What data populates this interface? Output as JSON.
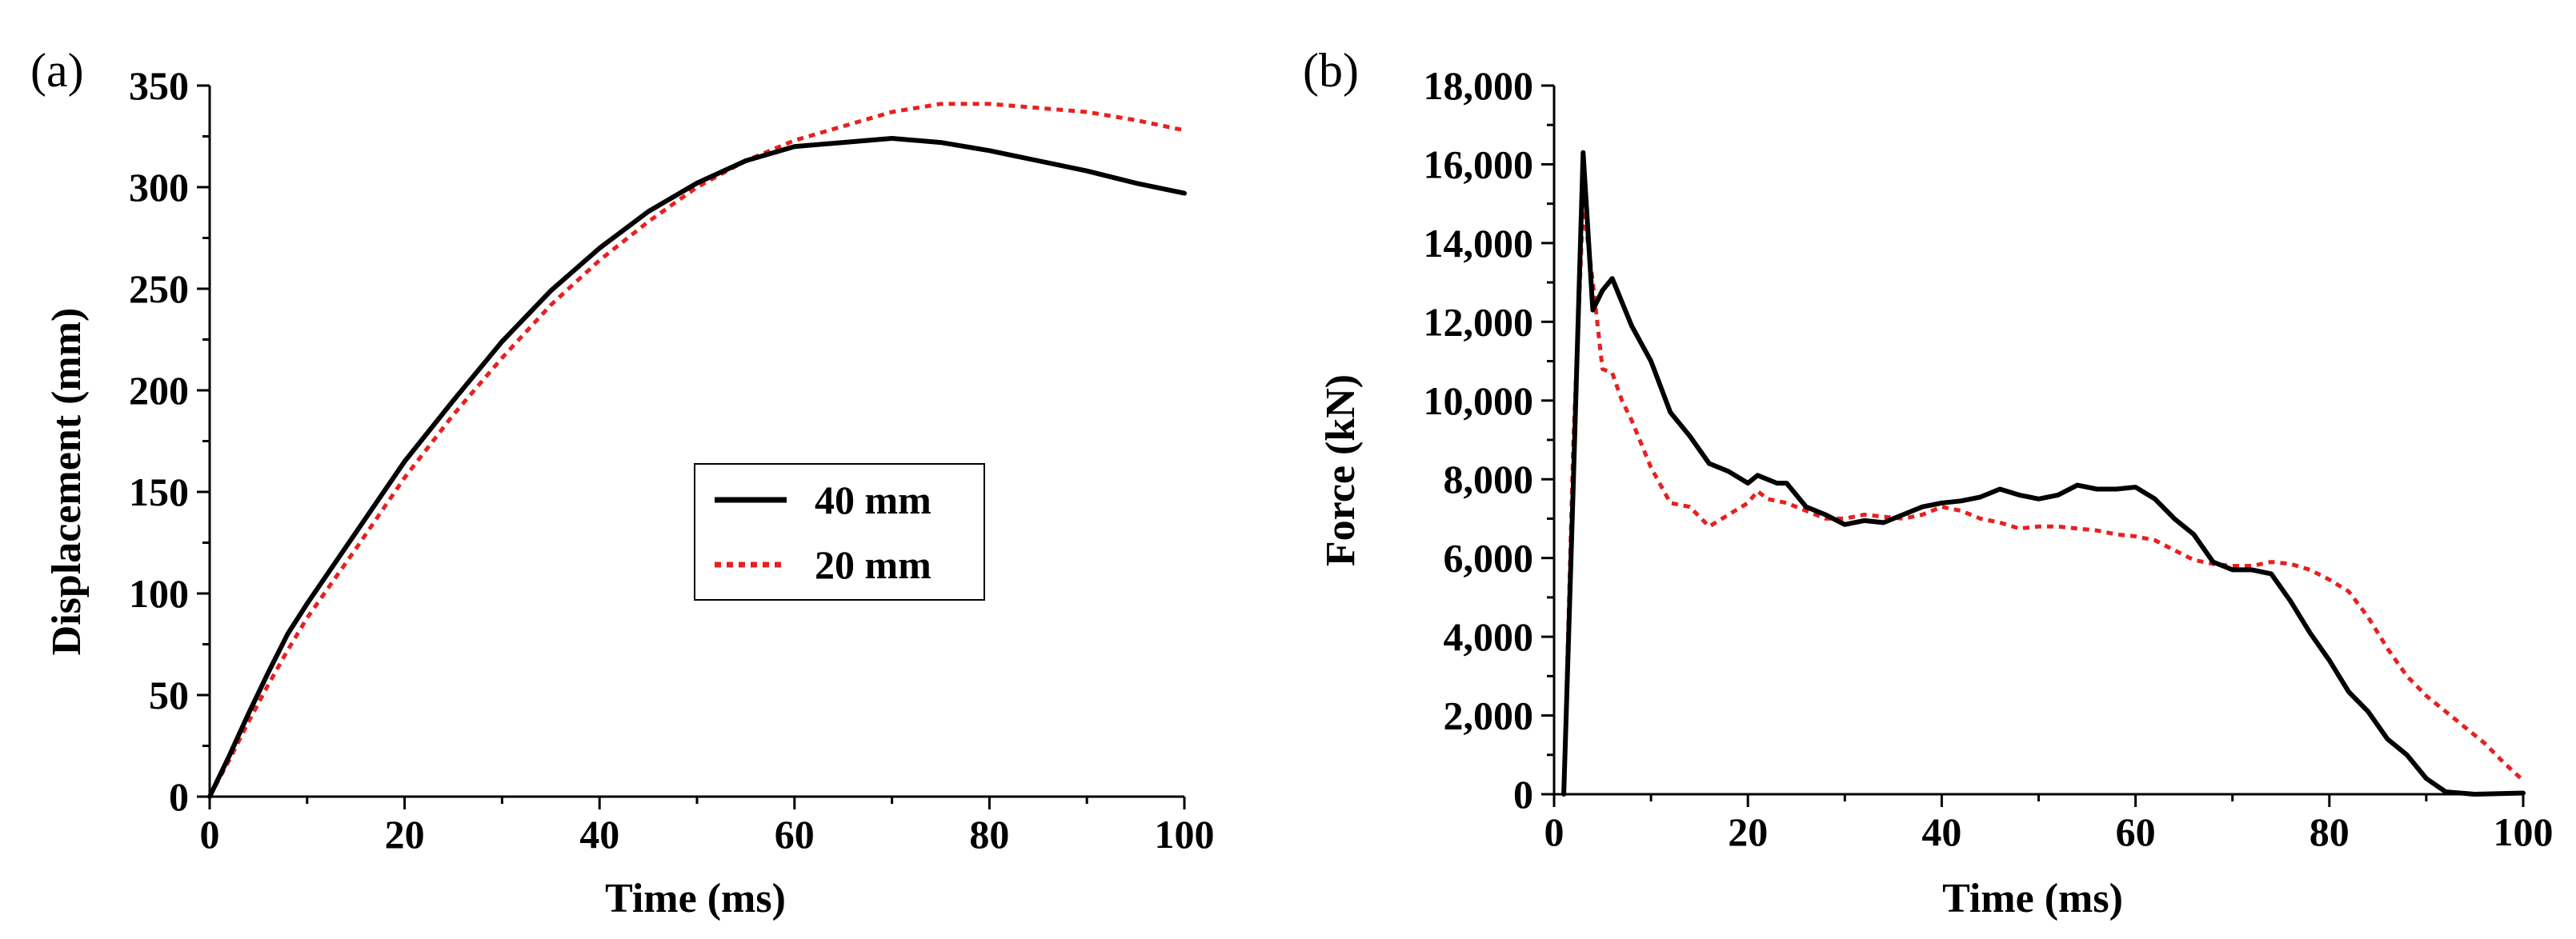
{
  "chart_data": [
    {
      "panel_label": "(a)",
      "type": "line",
      "title": "",
      "xlabel": "Time (ms)",
      "ylabel": "Displacement (mm)",
      "xlim": [
        0,
        100
      ],
      "ylim": [
        0,
        350
      ],
      "xticks": [
        0,
        20,
        40,
        60,
        80,
        100
      ],
      "xtick_labels": [
        "0",
        "20",
        "40",
        "60",
        "80",
        "100"
      ],
      "yticks": [
        0,
        50,
        100,
        150,
        200,
        250,
        300,
        350
      ],
      "ytick_labels": [
        "0",
        "50",
        "100",
        "150",
        "200",
        "250",
        "300",
        "350"
      ],
      "grid": false,
      "legend": {
        "position": "center-right",
        "labels": [
          "40 mm",
          "20 mm"
        ]
      },
      "series": [
        {
          "name": "40 mm",
          "color": "#000000",
          "style": "solid",
          "x": [
            0,
            2,
            4,
            6,
            8,
            10,
            15,
            20,
            25,
            30,
            35,
            40,
            45,
            50,
            55,
            60,
            65,
            70,
            75,
            80,
            85,
            90,
            95,
            100
          ],
          "y": [
            0,
            20,
            41,
            61,
            80,
            95,
            130,
            165,
            195,
            224,
            249,
            270,
            288,
            302,
            313,
            320,
            322,
            324,
            322,
            318,
            313,
            308,
            302,
            297
          ]
        },
        {
          "name": "20 mm",
          "color": "#e82020",
          "style": "dotted",
          "x": [
            0,
            2,
            4,
            6,
            8,
            10,
            15,
            20,
            25,
            30,
            35,
            40,
            45,
            50,
            55,
            60,
            65,
            70,
            75,
            80,
            85,
            90,
            95,
            100
          ],
          "y": [
            0,
            18,
            37,
            55,
            72,
            88,
            122,
            157,
            188,
            216,
            242,
            264,
            283,
            300,
            313,
            323,
            330,
            337,
            341,
            341,
            339,
            337,
            333,
            328
          ]
        }
      ]
    },
    {
      "panel_label": "(b)",
      "type": "line",
      "title": "",
      "xlabel": "Time (ms)",
      "ylabel": "Force (kN)",
      "xlim": [
        0,
        100
      ],
      "ylim": [
        0,
        18000
      ],
      "xticks": [
        0,
        20,
        40,
        60,
        80,
        100
      ],
      "xtick_labels": [
        "0",
        "20",
        "40",
        "60",
        "80",
        "100"
      ],
      "yticks": [
        0,
        2000,
        4000,
        6000,
        8000,
        10000,
        12000,
        14000,
        16000,
        18000
      ],
      "ytick_labels": [
        "0",
        "2,000",
        "4,000",
        "6,000",
        "8,000",
        "10,000",
        "12,000",
        "14,000",
        "16,000",
        "18,000"
      ],
      "grid": false,
      "series": [
        {
          "name": "40 mm",
          "color": "#000000",
          "style": "solid",
          "x": [
            1,
            2,
            3,
            4,
            5,
            6,
            7,
            8,
            10,
            12,
            14,
            16,
            18,
            20,
            21,
            22,
            23,
            24,
            26,
            28,
            30,
            32,
            34,
            36,
            38,
            40,
            42,
            44,
            46,
            48,
            50,
            52,
            54,
            56,
            58,
            60,
            62,
            64,
            66,
            68,
            70,
            72,
            74,
            76,
            78,
            80,
            82,
            84,
            86,
            88,
            90,
            92,
            95,
            100
          ],
          "y": [
            0,
            8000,
            16300,
            12300,
            12800,
            13100,
            12500,
            11900,
            11000,
            9700,
            9100,
            8400,
            8200,
            7900,
            8100,
            8000,
            7900,
            7900,
            7300,
            7100,
            6850,
            6950,
            6900,
            7100,
            7300,
            7400,
            7450,
            7550,
            7750,
            7600,
            7500,
            7600,
            7850,
            7750,
            7750,
            7800,
            7500,
            7000,
            6600,
            5900,
            5700,
            5700,
            5600,
            4900,
            4100,
            3400,
            2600,
            2100,
            1400,
            1000,
            400,
            60,
            0,
            30
          ]
        },
        {
          "name": "20 mm",
          "color": "#e82020",
          "style": "dotted",
          "x": [
            1,
            2,
            3,
            4,
            5,
            6,
            7,
            8,
            10,
            12,
            14,
            16,
            18,
            20,
            21,
            22,
            24,
            26,
            28,
            30,
            32,
            34,
            36,
            38,
            40,
            42,
            44,
            46,
            48,
            50,
            52,
            54,
            56,
            58,
            60,
            62,
            64,
            66,
            68,
            70,
            72,
            74,
            76,
            78,
            80,
            82,
            84,
            86,
            88,
            90,
            92,
            94,
            96,
            98,
            100
          ],
          "y": [
            0,
            9000,
            15000,
            13000,
            10800,
            10700,
            10000,
            9500,
            8300,
            7400,
            7300,
            6800,
            7100,
            7400,
            7700,
            7500,
            7400,
            7200,
            7000,
            7000,
            7100,
            7050,
            7000,
            7100,
            7300,
            7200,
            7000,
            6900,
            6750,
            6800,
            6800,
            6750,
            6700,
            6600,
            6550,
            6450,
            6200,
            5950,
            5850,
            5800,
            5800,
            5900,
            5850,
            5700,
            5450,
            5150,
            4500,
            3700,
            3000,
            2500,
            2100,
            1700,
            1300,
            800,
            350
          ]
        }
      ]
    }
  ]
}
